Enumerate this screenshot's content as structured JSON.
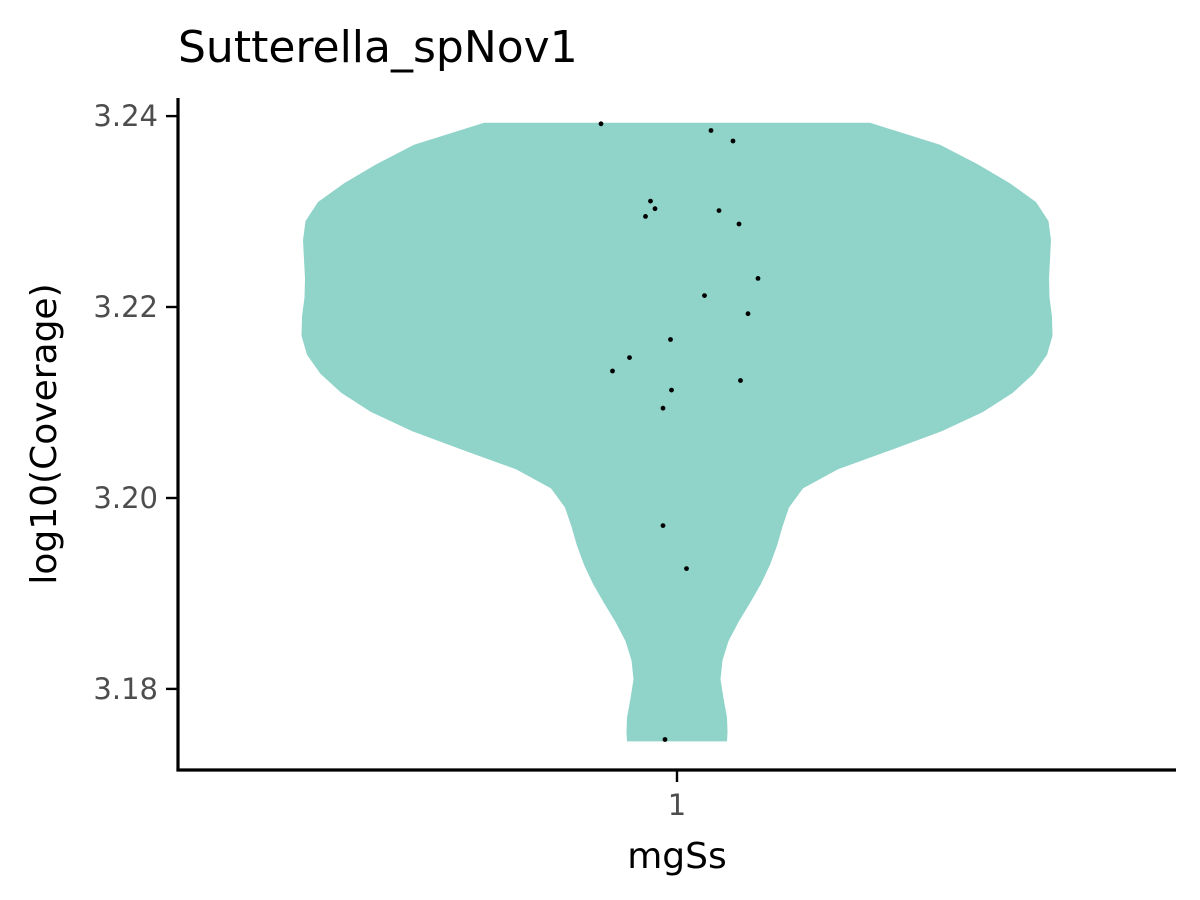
{
  "chart_data": {
    "type": "violin",
    "title": "Sutterella_spNov1",
    "xlabel": "mgSs",
    "ylabel": "log10(Coverage)",
    "categories": [
      "1"
    ],
    "ylim": [
      3.1715,
      3.2419
    ],
    "yticks": [
      3.18,
      3.2,
      3.22,
      3.24
    ],
    "ytick_labels": [
      "3.18",
      "3.20",
      "3.22",
      "3.24"
    ],
    "grid": false,
    "legend": "none",
    "colors": {
      "violin_fill": "#8fd3c9",
      "points": "#000000"
    },
    "violin": {
      "y_range": [
        3.1745,
        3.2393
      ],
      "profile": [
        [
          3.1745,
          0.1
        ],
        [
          3.1755,
          0.101
        ],
        [
          3.177,
          0.1
        ],
        [
          3.179,
          0.093
        ],
        [
          3.181,
          0.087
        ],
        [
          3.183,
          0.091
        ],
        [
          3.185,
          0.103
        ],
        [
          3.187,
          0.123
        ],
        [
          3.189,
          0.146
        ],
        [
          3.191,
          0.168
        ],
        [
          3.193,
          0.186
        ],
        [
          3.195,
          0.2
        ],
        [
          3.197,
          0.211
        ],
        [
          3.199,
          0.224
        ],
        [
          3.201,
          0.252
        ],
        [
          3.203,
          0.322
        ],
        [
          3.205,
          0.427
        ],
        [
          3.207,
          0.53
        ],
        [
          3.209,
          0.612
        ],
        [
          3.211,
          0.671
        ],
        [
          3.213,
          0.713
        ],
        [
          3.215,
          0.74
        ],
        [
          3.217,
          0.751
        ],
        [
          3.219,
          0.75
        ],
        [
          3.221,
          0.745
        ],
        [
          3.223,
          0.744
        ],
        [
          3.225,
          0.746
        ],
        [
          3.227,
          0.748
        ],
        [
          3.229,
          0.743
        ],
        [
          3.231,
          0.718
        ],
        [
          3.233,
          0.665
        ],
        [
          3.235,
          0.6
        ],
        [
          3.237,
          0.526
        ],
        [
          3.2393,
          0.386
        ]
      ]
    },
    "points": [
      {
        "x": 0.848,
        "y": 3.2392
      },
      {
        "x": 1.068,
        "y": 3.2385
      },
      {
        "x": 1.112,
        "y": 3.2374
      },
      {
        "x": 0.947,
        "y": 3.2311
      },
      {
        "x": 0.956,
        "y": 3.2303
      },
      {
        "x": 0.937,
        "y": 3.2295
      },
      {
        "x": 1.084,
        "y": 3.2301
      },
      {
        "x": 1.124,
        "y": 3.2287
      },
      {
        "x": 1.162,
        "y": 3.223
      },
      {
        "x": 1.055,
        "y": 3.2212
      },
      {
        "x": 1.142,
        "y": 3.2193
      },
      {
        "x": 0.987,
        "y": 3.2166
      },
      {
        "x": 0.905,
        "y": 3.2147
      },
      {
        "x": 0.871,
        "y": 3.2133
      },
      {
        "x": 1.127,
        "y": 3.2123
      },
      {
        "x": 0.989,
        "y": 3.2113
      },
      {
        "x": 0.972,
        "y": 3.2094
      },
      {
        "x": 0.972,
        "y": 3.1971
      },
      {
        "x": 1.019,
        "y": 3.1926
      },
      {
        "x": 0.976,
        "y": 3.1747
      }
    ]
  }
}
